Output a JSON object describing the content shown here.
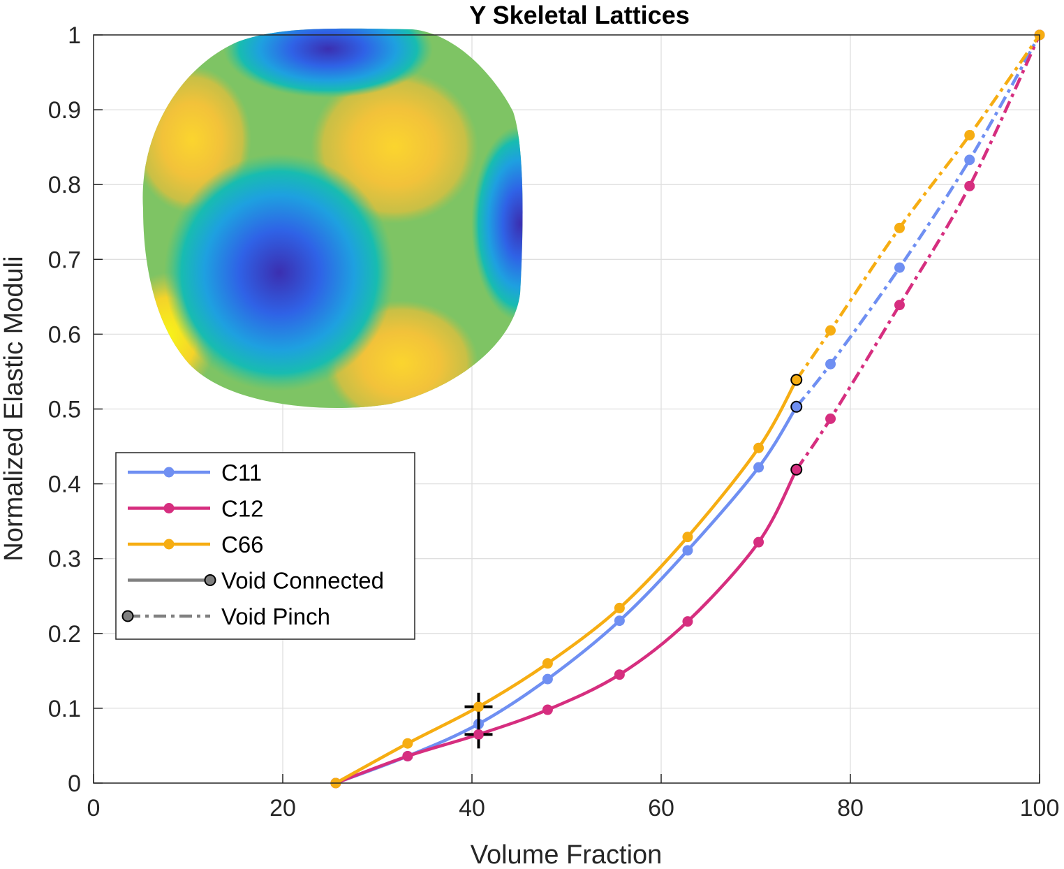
{
  "chart_data": {
    "type": "line",
    "title": "Y Skeletal Lattices",
    "xlabel": "Volume Fraction",
    "ylabel": "Normalized Elastic Moduli",
    "xlim": [
      0,
      100
    ],
    "ylim": [
      0,
      1
    ],
    "xticks": [
      0,
      20,
      40,
      60,
      80,
      100
    ],
    "yticks": [
      0,
      0.1,
      0.2,
      0.3,
      0.4,
      0.5,
      0.6,
      0.7,
      0.8,
      0.9,
      1
    ],
    "grid": true,
    "legend_position": "middle-left",
    "series": [
      {
        "name": "C11",
        "color": "#6f8ff2",
        "connected": {
          "x": [
            25.6,
            33.2,
            40.7,
            48.0,
            55.6,
            62.8,
            70.3,
            74.3
          ],
          "y": [
            0,
            0.036,
            0.079,
            0.139,
            0.217,
            0.311,
            0.422,
            0.503
          ]
        },
        "pinch": {
          "x": [
            74.3,
            77.9,
            85.2,
            92.6,
            100
          ],
          "y": [
            0.503,
            0.56,
            0.689,
            0.833,
            1.0
          ]
        },
        "transition": {
          "x": 74.3,
          "y": 0.503
        }
      },
      {
        "name": "C12",
        "color": "#d62e7f",
        "connected": {
          "x": [
            25.6,
            33.2,
            40.7,
            48.0,
            55.6,
            62.8,
            70.3,
            74.3
          ],
          "y": [
            0,
            0.036,
            0.065,
            0.098,
            0.145,
            0.216,
            0.322,
            0.419
          ]
        },
        "pinch": {
          "x": [
            74.3,
            77.9,
            85.2,
            92.6,
            100
          ],
          "y": [
            0.419,
            0.487,
            0.639,
            0.798,
            1.0
          ]
        },
        "transition": {
          "x": 74.3,
          "y": 0.419
        }
      },
      {
        "name": "C66",
        "color": "#f6ad12",
        "connected": {
          "x": [
            25.6,
            33.2,
            40.7,
            48.0,
            55.6,
            62.8,
            70.3,
            74.3
          ],
          "y": [
            0,
            0.053,
            0.102,
            0.16,
            0.234,
            0.329,
            0.448,
            0.539
          ]
        },
        "pinch": {
          "x": [
            74.3,
            77.9,
            85.2,
            92.6,
            100
          ],
          "y": [
            0.539,
            0.605,
            0.742,
            0.866,
            1.0
          ]
        },
        "transition": {
          "x": 74.3,
          "y": 0.539
        }
      }
    ],
    "style_legend": [
      {
        "name": "Void Connected",
        "style": "solid",
        "marker_end": "right"
      },
      {
        "name": "Void Pinch",
        "style": "dashed",
        "marker_end": "left"
      }
    ],
    "crosshair_annotations": [
      {
        "x": 40.7,
        "y": 0.102
      },
      {
        "x": 40.7,
        "y": 0.065
      }
    ],
    "inset": {
      "description_icon": "elastic-surface-sphere",
      "colormap": "parula"
    }
  }
}
